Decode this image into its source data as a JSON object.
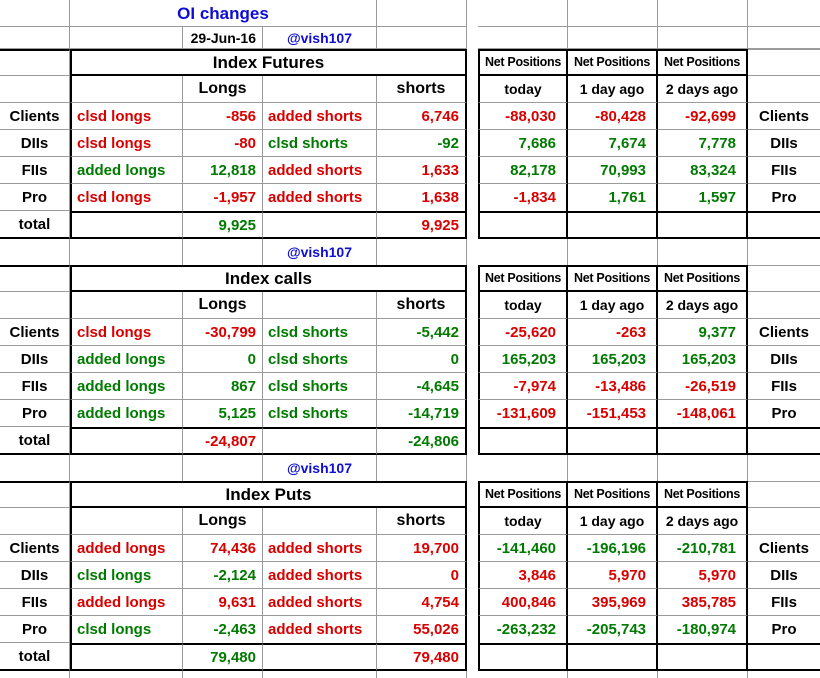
{
  "colors": {
    "red": "#d90000",
    "green": "#007a00",
    "blue": "#0d0dd6",
    "grid_line": "#9b9b9b"
  },
  "header": {
    "title": "OI changes",
    "date": "29-Jun-16",
    "handle": "@vish107"
  },
  "net_header": {
    "label": "Net Positions",
    "cols": [
      "today",
      "1 day ago",
      "2 days ago"
    ]
  },
  "col_headers": {
    "longs": "Longs",
    "shorts": "shorts"
  },
  "total_label": "total",
  "sections": [
    {
      "title": "Index Futures",
      "handle": "@vish107",
      "rows": [
        {
          "label": "Clients",
          "long_action": "clsd longs",
          "long_action_color": "red",
          "long_value": "-856",
          "long_color": "red",
          "short_action": "added shorts",
          "short_action_color": "red",
          "short_value": "6,746",
          "short_color": "red",
          "net": [
            "-88,030",
            "-80,428",
            "-92,699"
          ],
          "net_colors": [
            "red",
            "red",
            "red"
          ]
        },
        {
          "label": "DIIs",
          "long_action": "clsd longs",
          "long_action_color": "red",
          "long_value": "-80",
          "long_color": "red",
          "short_action": "clsd shorts",
          "short_action_color": "green",
          "short_value": "-92",
          "short_color": "green",
          "net": [
            "7,686",
            "7,674",
            "7,778"
          ],
          "net_colors": [
            "green",
            "green",
            "green"
          ]
        },
        {
          "label": "FIIs",
          "long_action": "added longs",
          "long_action_color": "green",
          "long_value": "12,818",
          "long_color": "green",
          "short_action": "added shorts",
          "short_action_color": "red",
          "short_value": "1,633",
          "short_color": "red",
          "net": [
            "82,178",
            "70,993",
            "83,324"
          ],
          "net_colors": [
            "green",
            "green",
            "green"
          ]
        },
        {
          "label": "Pro",
          "long_action": "clsd longs",
          "long_action_color": "red",
          "long_value": "-1,957",
          "long_color": "red",
          "short_action": "added shorts",
          "short_action_color": "red",
          "short_value": "1,638",
          "short_color": "red",
          "net": [
            "-1,834",
            "1,761",
            "1,597"
          ],
          "net_colors": [
            "red",
            "green",
            "green"
          ]
        }
      ],
      "total": {
        "long_value": "9,925",
        "long_color": "green",
        "short_value": "9,925",
        "short_color": "red"
      }
    },
    {
      "title": "Index calls",
      "handle": "@vish107",
      "rows": [
        {
          "label": "Clients",
          "long_action": "clsd longs",
          "long_action_color": "red",
          "long_value": "-30,799",
          "long_color": "red",
          "short_action": "clsd shorts",
          "short_action_color": "green",
          "short_value": "-5,442",
          "short_color": "green",
          "net": [
            "-25,620",
            "-263",
            "9,377"
          ],
          "net_colors": [
            "red",
            "red",
            "green"
          ]
        },
        {
          "label": "DIIs",
          "long_action": "added longs",
          "long_action_color": "green",
          "long_value": "0",
          "long_color": "green",
          "short_action": "clsd shorts",
          "short_action_color": "green",
          "short_value": "0",
          "short_color": "green",
          "net": [
            "165,203",
            "165,203",
            "165,203"
          ],
          "net_colors": [
            "green",
            "green",
            "green"
          ]
        },
        {
          "label": "FIIs",
          "long_action": "added longs",
          "long_action_color": "green",
          "long_value": "867",
          "long_color": "green",
          "short_action": "clsd shorts",
          "short_action_color": "green",
          "short_value": "-4,645",
          "short_color": "green",
          "net": [
            "-7,974",
            "-13,486",
            "-26,519"
          ],
          "net_colors": [
            "red",
            "red",
            "red"
          ]
        },
        {
          "label": "Pro",
          "long_action": "added longs",
          "long_action_color": "green",
          "long_value": "5,125",
          "long_color": "green",
          "short_action": "clsd shorts",
          "short_action_color": "green",
          "short_value": "-14,719",
          "short_color": "green",
          "net": [
            "-131,609",
            "-151,453",
            "-148,061"
          ],
          "net_colors": [
            "red",
            "red",
            "red"
          ]
        }
      ],
      "total": {
        "long_value": "-24,807",
        "long_color": "red",
        "short_value": "-24,806",
        "short_color": "green"
      }
    },
    {
      "title": "Index Puts",
      "handle": null,
      "rows": [
        {
          "label": "Clients",
          "long_action": "added longs",
          "long_action_color": "red",
          "long_value": "74,436",
          "long_color": "red",
          "short_action": "added shorts",
          "short_action_color": "red",
          "short_value": "19,700",
          "short_color": "red",
          "net": [
            "-141,460",
            "-196,196",
            "-210,781"
          ],
          "net_colors": [
            "green",
            "green",
            "green"
          ]
        },
        {
          "label": "DIIs",
          "long_action": "clsd longs",
          "long_action_color": "green",
          "long_value": "-2,124",
          "long_color": "green",
          "short_action": "added shorts",
          "short_action_color": "red",
          "short_value": "0",
          "short_color": "red",
          "net": [
            "3,846",
            "5,970",
            "5,970"
          ],
          "net_colors": [
            "red",
            "red",
            "red"
          ]
        },
        {
          "label": "FIIs",
          "long_action": "added longs",
          "long_action_color": "red",
          "long_value": "9,631",
          "long_color": "red",
          "short_action": "added shorts",
          "short_action_color": "red",
          "short_value": "4,754",
          "short_color": "red",
          "net": [
            "400,846",
            "395,969",
            "385,785"
          ],
          "net_colors": [
            "red",
            "red",
            "red"
          ]
        },
        {
          "label": "Pro",
          "long_action": "clsd longs",
          "long_action_color": "green",
          "long_value": "-2,463",
          "long_color": "green",
          "short_action": "added shorts",
          "short_action_color": "red",
          "short_value": "55,026",
          "short_color": "red",
          "net": [
            "-263,232",
            "-205,743",
            "-180,974"
          ],
          "net_colors": [
            "green",
            "green",
            "green"
          ]
        }
      ],
      "total": {
        "long_value": "79,480",
        "long_color": "green",
        "short_value": "79,480",
        "short_color": "red"
      }
    }
  ]
}
